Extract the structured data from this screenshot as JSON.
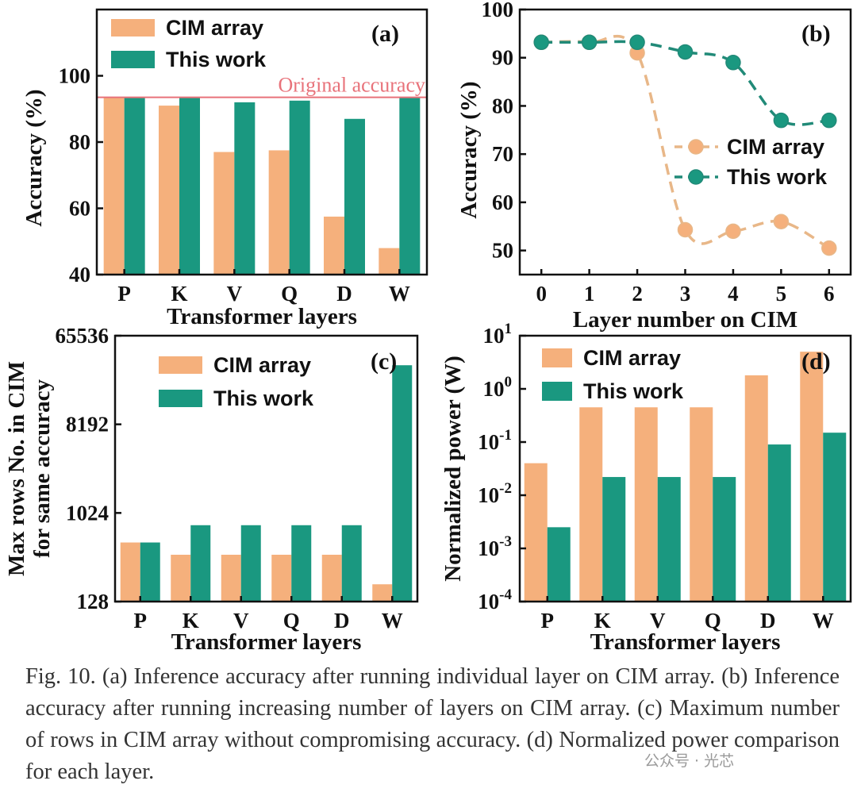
{
  "colors": {
    "cim": "#f5b07c",
    "this": "#1a9880",
    "cim_line": "#e8b788",
    "this_line": "#218a78",
    "reference": "#e8727a",
    "axis": "#111111"
  },
  "chart_data": [
    {
      "id": "a",
      "type": "bar",
      "panel_label": "(a)",
      "xlabel": "Transformer layers",
      "ylabel": "Accuracy (%)",
      "categories": [
        "P",
        "K",
        "V",
        "Q",
        "D",
        "W"
      ],
      "ylim": [
        40,
        120
      ],
      "yticks": [
        40,
        60,
        80,
        100
      ],
      "ytick_labels": [
        "40",
        "60",
        "80",
        "100"
      ],
      "series": [
        {
          "name": "CIM array",
          "values": [
            93.5,
            91,
            77,
            77.5,
            57.5,
            48
          ]
        },
        {
          "name": "This work",
          "values": [
            93.5,
            93.5,
            92,
            92.5,
            87,
            93.5
          ]
        }
      ],
      "reference_line": {
        "value": 93.5,
        "label": "Original accuracy"
      },
      "legend": [
        "CIM array",
        "This work"
      ],
      "legend_position": "top-left"
    },
    {
      "id": "b",
      "type": "line",
      "panel_label": "(b)",
      "xlabel": "Layer number on CIM",
      "ylabel": "Accuracy (%)",
      "x": [
        0,
        1,
        2,
        3,
        4,
        5,
        6
      ],
      "xtick_labels": [
        "0",
        "1",
        "2",
        "3",
        "4",
        "5",
        "6"
      ],
      "xlim": [
        -0.45,
        6.45
      ],
      "ylim": [
        45,
        100
      ],
      "yticks": [
        50,
        60,
        70,
        80,
        90,
        100
      ],
      "ytick_labels": [
        "50",
        "60",
        "70",
        "80",
        "90",
        "100"
      ],
      "series": [
        {
          "name": "CIM array",
          "values": [
            93.2,
            93.2,
            91,
            54.3,
            54,
            56,
            50.5
          ]
        },
        {
          "name": "This work",
          "values": [
            93.2,
            93.2,
            93.2,
            91.2,
            89,
            77,
            77
          ]
        }
      ],
      "legend": [
        "CIM array",
        "This work"
      ],
      "legend_position": "center-right"
    },
    {
      "id": "c",
      "type": "bar",
      "panel_label": "(c)",
      "xlabel": "Transformer layers",
      "ylabel_lines": [
        "Max rows No. in CIM",
        "for same accuracy"
      ],
      "categories": [
        "P",
        "K",
        "V",
        "Q",
        "D",
        "W"
      ],
      "yscale": "log2",
      "ylim": [
        128,
        65536
      ],
      "yticks": [
        128,
        1024,
        8192,
        65536
      ],
      "ytick_labels": [
        "128",
        "1024",
        "8192",
        "65536"
      ],
      "series": [
        {
          "name": "CIM array",
          "values": [
            512,
            384,
            384,
            384,
            384,
            192
          ]
        },
        {
          "name": "This work",
          "values": [
            512,
            768,
            768,
            768,
            768,
            32768
          ]
        }
      ],
      "legend": [
        "CIM array",
        "This work"
      ],
      "legend_position": "top-center"
    },
    {
      "id": "d",
      "type": "bar",
      "panel_label": "(d)",
      "xlabel": "Transformer layers",
      "ylabel": "Normalized power (W)",
      "categories": [
        "P",
        "K",
        "V",
        "Q",
        "D",
        "W"
      ],
      "yscale": "log10",
      "ylim": [
        0.0001,
        10
      ],
      "yticks": [
        0.0001,
        0.001,
        0.01,
        0.1,
        1,
        10
      ],
      "ytick_bases": [
        "10",
        "10",
        "10",
        "10",
        "10",
        "10"
      ],
      "ytick_exps": [
        "-4",
        "-3",
        "-2",
        "-1",
        "0",
        "1"
      ],
      "series": [
        {
          "name": "CIM array",
          "values": [
            0.04,
            0.45,
            0.45,
            0.45,
            1.8,
            5
          ]
        },
        {
          "name": "This work",
          "values": [
            0.0025,
            0.022,
            0.022,
            0.022,
            0.09,
            0.15
          ]
        }
      ],
      "legend": [
        "CIM array",
        "This work"
      ],
      "legend_position": "top-left"
    }
  ],
  "caption": "Fig. 10. (a) Inference accuracy after running individual layer on CIM array. (b) Inference accuracy after running increasing number of layers on CIM array. (c) Maximum number of rows in CIM array without compromising accuracy. (d) Normalized power comparison for each layer.",
  "watermark": "公众号 · 光芯"
}
